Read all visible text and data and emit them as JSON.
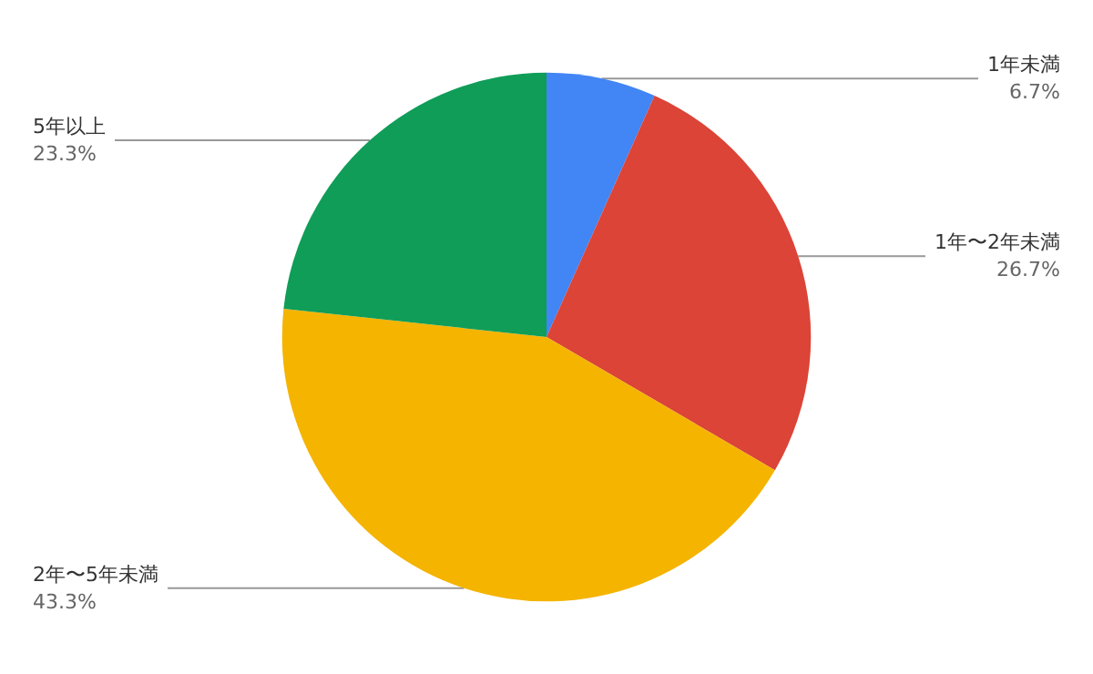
{
  "chart_data": {
    "type": "pie",
    "categories": [
      "1年未満",
      "1年〜2年未満",
      "2年〜5年未満",
      "5年以上"
    ],
    "values": [
      6.7,
      26.7,
      43.3,
      23.3
    ],
    "colors": [
      "#4285f4",
      "#db4437",
      "#f4b400",
      "#0f9d58"
    ],
    "value_labels": [
      "6.7%",
      "26.7%",
      "43.3%",
      "23.3%"
    ],
    "legend": false
  }
}
